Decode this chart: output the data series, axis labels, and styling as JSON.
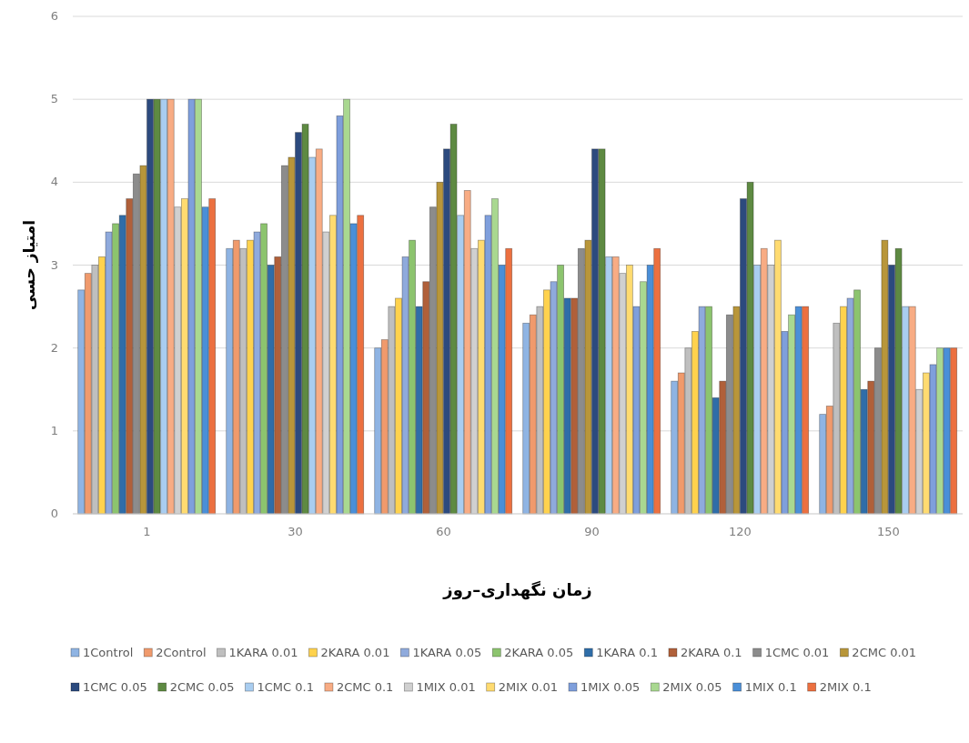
{
  "chart_data": {
    "type": "bar",
    "xlabel": "زمان نگهداری–روز",
    "ylabel": "امتیاز حسی",
    "categories": [
      "1",
      "30",
      "60",
      "90",
      "120",
      "150"
    ],
    "ylim": [
      0,
      6
    ],
    "yticks": [
      0,
      1,
      2,
      3,
      4,
      5,
      6
    ],
    "grid": "y",
    "legend": "bottom",
    "series": [
      {
        "name": "1Control",
        "color": "#8fb4e3",
        "values": [
          2.7,
          3.2,
          2.0,
          2.3,
          1.6,
          1.2
        ]
      },
      {
        "name": "2Control",
        "color": "#f09a6c",
        "values": [
          2.9,
          3.3,
          2.1,
          2.4,
          1.7,
          1.3
        ]
      },
      {
        "name": "1KARA 0.01",
        "color": "#bfbfbf",
        "values": [
          3.0,
          3.2,
          2.5,
          2.5,
          2.0,
          2.3
        ]
      },
      {
        "name": "2KARA 0.01",
        "color": "#ffd24d",
        "values": [
          3.1,
          3.3,
          2.6,
          2.7,
          2.2,
          2.5
        ]
      },
      {
        "name": "1KARA 0.05",
        "color": "#8faadc",
        "values": [
          3.4,
          3.4,
          3.1,
          2.8,
          2.5,
          2.6
        ]
      },
      {
        "name": "2KARA 0.05",
        "color": "#8cc46e",
        "values": [
          3.5,
          3.5,
          3.3,
          3.0,
          2.5,
          2.7
        ]
      },
      {
        "name": "1KARA 0.1",
        "color": "#2f6da8",
        "values": [
          3.6,
          3.0,
          2.5,
          2.6,
          1.4,
          1.5
        ]
      },
      {
        "name": "2KARA 0.1",
        "color": "#b0603a",
        "values": [
          3.8,
          3.1,
          2.8,
          2.6,
          1.6,
          1.6
        ]
      },
      {
        "name": "1CMC 0.01",
        "color": "#8c8c8c",
        "values": [
          4.1,
          4.2,
          3.7,
          3.2,
          2.4,
          2.0
        ]
      },
      {
        "name": "2CMC 0.01",
        "color": "#b8963a",
        "values": [
          4.2,
          4.3,
          4.0,
          3.3,
          2.5,
          3.3
        ]
      },
      {
        "name": "1CMC 0.05",
        "color": "#2c4a7e",
        "values": [
          5.0,
          4.6,
          4.4,
          4.4,
          3.8,
          3.0
        ]
      },
      {
        "name": "2CMC 0.05",
        "color": "#5e8a42",
        "values": [
          5.0,
          4.7,
          4.7,
          4.4,
          4.0,
          3.2
        ]
      },
      {
        "name": "1CMC 0.1",
        "color": "#a9cdf0",
        "values": [
          5.0,
          4.3,
          3.6,
          3.1,
          3.0,
          2.5
        ]
      },
      {
        "name": "2CMC 0.1",
        "color": "#f8ac84",
        "values": [
          5.0,
          4.4,
          3.9,
          3.1,
          3.2,
          2.5
        ]
      },
      {
        "name": "1MIX 0.01",
        "color": "#d0d0d0",
        "values": [
          3.7,
          3.4,
          3.2,
          2.9,
          3.0,
          1.5
        ]
      },
      {
        "name": "2MIX 0.01",
        "color": "#ffdb70",
        "values": [
          3.8,
          3.6,
          3.3,
          3.0,
          3.3,
          1.7
        ]
      },
      {
        "name": "1MIX 0.05",
        "color": "#7f9fdc",
        "values": [
          5.0,
          4.8,
          3.6,
          2.5,
          2.2,
          1.8
        ]
      },
      {
        "name": "2MIX 0.05",
        "color": "#a9d890",
        "values": [
          5.0,
          5.0,
          3.8,
          2.8,
          2.4,
          2.0
        ]
      },
      {
        "name": "1MIX 0.1",
        "color": "#4a8fd8",
        "values": [
          3.7,
          3.5,
          3.0,
          3.0,
          2.5,
          2.0
        ]
      },
      {
        "name": "2MIX 0.1",
        "color": "#ec7040",
        "values": [
          3.8,
          3.6,
          3.2,
          3.2,
          2.5,
          2.0
        ]
      }
    ]
  }
}
